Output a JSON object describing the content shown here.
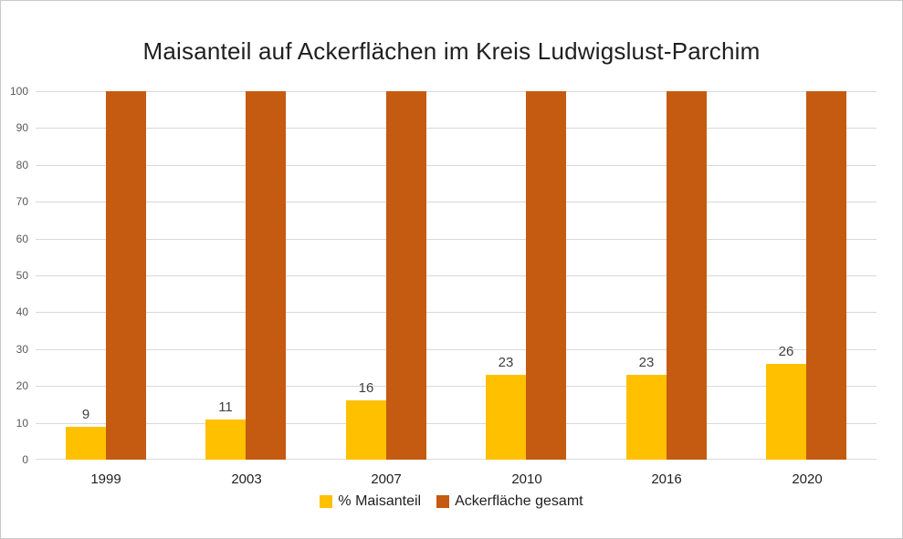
{
  "chart_data": {
    "type": "bar",
    "title": "Maisanteil auf Ackerflächen im Kreis Ludwigslust-Parchim",
    "categories": [
      "1999",
      "2003",
      "2007",
      "2010",
      "2016",
      "2020"
    ],
    "series": [
      {
        "id": "maisanteil",
        "name": "% Maisanteil",
        "color": "#FFC000",
        "values": [
          9,
          11,
          16,
          23,
          23,
          26
        ],
        "data_labels": [
          "9",
          "11",
          "16",
          "23",
          "23",
          "26"
        ],
        "show_data_labels": true
      },
      {
        "id": "ackerflaeche-gesamt",
        "name": "Ackerfläche gesamt",
        "color": "#C55A11",
        "values": [
          100,
          100,
          100,
          100,
          100,
          100
        ],
        "data_labels": [],
        "show_data_labels": false
      }
    ],
    "xlabel": "",
    "ylabel": "",
    "ylim": [
      0,
      100
    ],
    "yticks": [
      0,
      10,
      20,
      30,
      40,
      50,
      60,
      70,
      80,
      90,
      100
    ],
    "grid": true,
    "legend_position": "bottom"
  },
  "colors": {
    "gridline": "#d9d9d9",
    "axis_line": "#d9d9d9",
    "axis_tick_text": "#595959",
    "data_label_text": "#404040",
    "category_text": "#1f1f1f",
    "title_text": "#1f1f1f",
    "legend_text": "#1f1f1f",
    "frame_border": "#c9c9c9",
    "background": "#ffffff"
  }
}
